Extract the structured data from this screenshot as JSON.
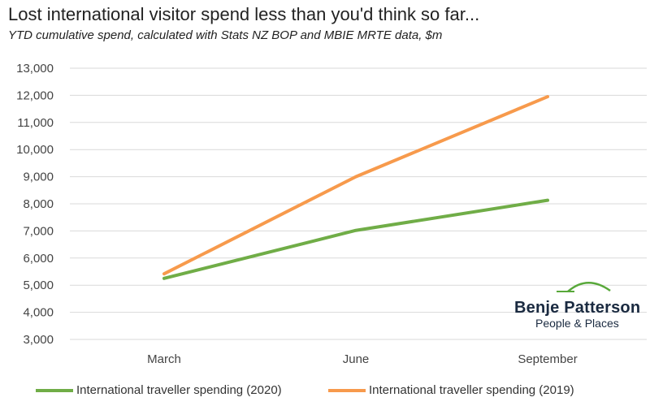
{
  "chart_data": {
    "type": "line",
    "title": "Lost international visitor spend less than you'd think so far...",
    "subtitle": "YTD cumulative spend, calculated with Stats NZ BOP and MBIE MRTE data, $m",
    "categories": [
      "March",
      "June",
      "September"
    ],
    "series": [
      {
        "name": "International traveller spending (2020)",
        "values": [
          5250,
          7020,
          8130
        ],
        "color": "#70ad47"
      },
      {
        "name": "International traveller spending (2019)",
        "values": [
          5420,
          9000,
          11950
        ],
        "color": "#f79a4c"
      }
    ],
    "ylim": [
      3000,
      13000
    ],
    "yticks": [
      "3,000",
      "4,000",
      "5,000",
      "6,000",
      "7,000",
      "8,000",
      "9,000",
      "10,000",
      "11,000",
      "12,000",
      "13,000"
    ],
    "ytick_values": [
      3000,
      4000,
      5000,
      6000,
      7000,
      8000,
      9000,
      10000,
      11000,
      12000,
      13000
    ],
    "grid": true,
    "legend_position": "bottom"
  },
  "logo": {
    "name": "Benje Patterson",
    "tagline": "People & Places",
    "icon": "green-hill-icon"
  }
}
